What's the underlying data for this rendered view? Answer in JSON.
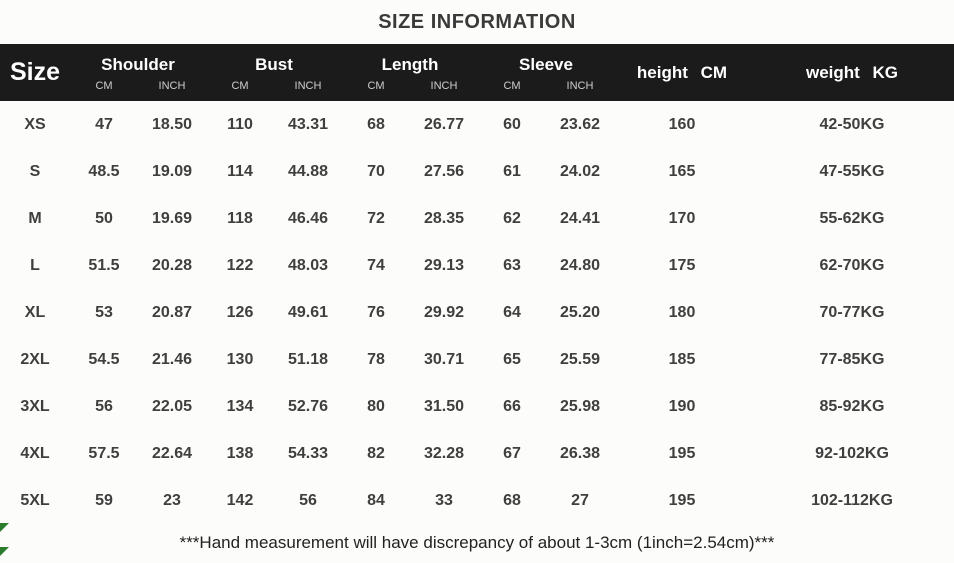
{
  "title": "SIZE INFORMATION",
  "header": {
    "size_label": "Size",
    "unit_cm": "CM",
    "unit_inch": "INCH",
    "groups": [
      {
        "label": "Shoulder"
      },
      {
        "label": "Bust"
      },
      {
        "label": "Length"
      },
      {
        "label": "Sleeve"
      }
    ],
    "height_label": "height CM",
    "weight_label": "weight KG"
  },
  "chart_data": {
    "type": "table",
    "title": "SIZE INFORMATION",
    "columns": [
      "Size",
      "Shoulder CM",
      "Shoulder INCH",
      "Bust CM",
      "Bust INCH",
      "Length CM",
      "Length INCH",
      "Sleeve CM",
      "Sleeve INCH",
      "height CM",
      "weight KG"
    ],
    "rows": [
      {
        "size": "XS",
        "shoulder_cm": "47",
        "shoulder_inch": "18.50",
        "bust_cm": "110",
        "bust_inch": "43.31",
        "length_cm": "68",
        "length_inch": "26.77",
        "sleeve_cm": "60",
        "sleeve_inch": "23.62",
        "height_cm": "160",
        "weight_kg": "42-50KG"
      },
      {
        "size": "S",
        "shoulder_cm": "48.5",
        "shoulder_inch": "19.09",
        "bust_cm": "114",
        "bust_inch": "44.88",
        "length_cm": "70",
        "length_inch": "27.56",
        "sleeve_cm": "61",
        "sleeve_inch": "24.02",
        "height_cm": "165",
        "weight_kg": "47-55KG"
      },
      {
        "size": "M",
        "shoulder_cm": "50",
        "shoulder_inch": "19.69",
        "bust_cm": "118",
        "bust_inch": "46.46",
        "length_cm": "72",
        "length_inch": "28.35",
        "sleeve_cm": "62",
        "sleeve_inch": "24.41",
        "height_cm": "170",
        "weight_kg": "55-62KG"
      },
      {
        "size": "L",
        "shoulder_cm": "51.5",
        "shoulder_inch": "20.28",
        "bust_cm": "122",
        "bust_inch": "48.03",
        "length_cm": "74",
        "length_inch": "29.13",
        "sleeve_cm": "63",
        "sleeve_inch": "24.80",
        "height_cm": "175",
        "weight_kg": "62-70KG"
      },
      {
        "size": "XL",
        "shoulder_cm": "53",
        "shoulder_inch": "20.87",
        "bust_cm": "126",
        "bust_inch": "49.61",
        "length_cm": "76",
        "length_inch": "29.92",
        "sleeve_cm": "64",
        "sleeve_inch": "25.20",
        "height_cm": "180",
        "weight_kg": "70-77KG"
      },
      {
        "size": "2XL",
        "shoulder_cm": "54.5",
        "shoulder_inch": "21.46",
        "bust_cm": "130",
        "bust_inch": "51.18",
        "length_cm": "78",
        "length_inch": "30.71",
        "sleeve_cm": "65",
        "sleeve_inch": "25.59",
        "height_cm": "185",
        "weight_kg": "77-85KG"
      },
      {
        "size": "3XL",
        "shoulder_cm": "56",
        "shoulder_inch": "22.05",
        "bust_cm": "134",
        "bust_inch": "52.76",
        "length_cm": "80",
        "length_inch": "31.50",
        "sleeve_cm": "66",
        "sleeve_inch": "25.98",
        "height_cm": "190",
        "weight_kg": "85-92KG"
      },
      {
        "size": "4XL",
        "shoulder_cm": "57.5",
        "shoulder_inch": "22.64",
        "bust_cm": "138",
        "bust_inch": "54.33",
        "length_cm": "82",
        "length_inch": "32.28",
        "sleeve_cm": "67",
        "sleeve_inch": "26.38",
        "height_cm": "195",
        "weight_kg": "92-102KG"
      },
      {
        "size": "5XL",
        "shoulder_cm": "59",
        "shoulder_inch": "23",
        "bust_cm": "142",
        "bust_inch": "56",
        "length_cm": "84",
        "length_inch": "33",
        "sleeve_cm": "68",
        "sleeve_inch": "27",
        "height_cm": "195",
        "weight_kg": "102-112KG"
      }
    ]
  },
  "footer_note": "***Hand measurement will have discrepancy of about 1-3cm (1inch=2.54cm)***",
  "colors": {
    "header_bg": "#1b1b1b",
    "header_text": "#ffffff",
    "body_text": "#3f3f3f",
    "marker_green": "#2a7d2a"
  }
}
